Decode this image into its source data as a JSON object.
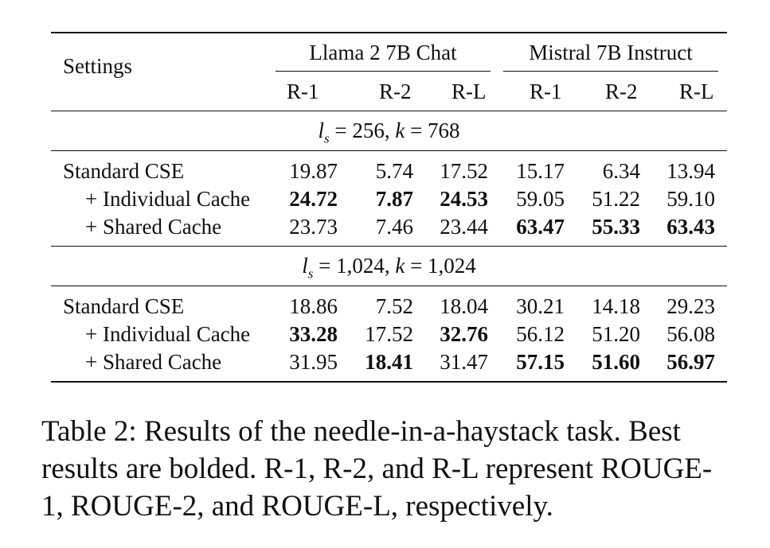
{
  "table": {
    "settings_header": "Settings",
    "groups": [
      {
        "name": "Llama 2 7B Chat",
        "metrics": [
          "R-1",
          "R-2",
          "R-L"
        ]
      },
      {
        "name": "Mistral 7B Instruct",
        "metrics": [
          "R-1",
          "R-2",
          "R-L"
        ]
      }
    ],
    "sections": [
      {
        "label_var": "l",
        "label_sub": "s",
        "label_rest": " = 256, ",
        "label_k": "k",
        "label_k_rest": " = 768",
        "rows": [
          {
            "setting": "Standard CSE",
            "values": [
              "19.87",
              "5.74",
              "17.52",
              "15.17",
              "6.34",
              "13.94"
            ],
            "bold": [
              false,
              false,
              false,
              false,
              false,
              false
            ]
          },
          {
            "setting": "+ Individual Cache",
            "values": [
              "24.72",
              "7.87",
              "24.53",
              "59.05",
              "51.22",
              "59.10"
            ],
            "bold": [
              true,
              true,
              true,
              false,
              false,
              false
            ]
          },
          {
            "setting": "+ Shared Cache",
            "values": [
              "23.73",
              "7.46",
              "23.44",
              "63.47",
              "55.33",
              "63.43"
            ],
            "bold": [
              false,
              false,
              false,
              true,
              true,
              true
            ]
          }
        ]
      },
      {
        "label_var": "l",
        "label_sub": "s",
        "label_rest": " = 1,024, ",
        "label_k": "k",
        "label_k_rest": " = 1,024",
        "rows": [
          {
            "setting": "Standard CSE",
            "values": [
              "18.86",
              "7.52",
              "18.04",
              "30.21",
              "14.18",
              "29.23"
            ],
            "bold": [
              false,
              false,
              false,
              false,
              false,
              false
            ]
          },
          {
            "setting": "+ Individual Cache",
            "values": [
              "33.28",
              "17.52",
              "32.76",
              "56.12",
              "51.20",
              "56.08"
            ],
            "bold": [
              true,
              false,
              true,
              false,
              false,
              false
            ]
          },
          {
            "setting": "+ Shared Cache",
            "values": [
              "31.95",
              "18.41",
              "31.47",
              "57.15",
              "51.60",
              "56.97"
            ],
            "bold": [
              false,
              true,
              false,
              true,
              true,
              true
            ]
          }
        ]
      }
    ]
  },
  "caption": {
    "lines": [
      "Table 2: Results of the needle-in-a-haystack task. Best",
      "results are bolded. R-1, R-2, and R-L represent ROUGE-",
      "1, ROUGE-2, and ROUGE-L, respectively."
    ]
  }
}
